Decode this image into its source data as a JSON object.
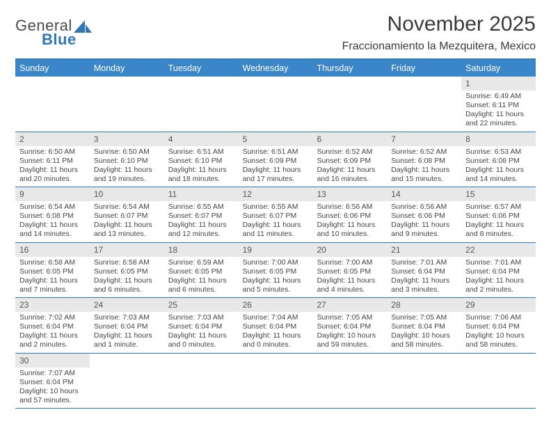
{
  "brand": {
    "part1": "General",
    "part2": "Blue"
  },
  "title": {
    "month": "November 2025",
    "location": "Fraccionamiento la Mezquitera, Mexico"
  },
  "colors": {
    "accent": "#3b86c8",
    "rule": "#2f77b5",
    "daybar": "#e8e8e8",
    "text": "#444444"
  },
  "dayNames": [
    "Sunday",
    "Monday",
    "Tuesday",
    "Wednesday",
    "Thursday",
    "Friday",
    "Saturday"
  ],
  "leadingBlanks": 6,
  "days": [
    {
      "n": "1",
      "sr": "Sunrise: 6:49 AM",
      "ss": "Sunset: 6:11 PM",
      "d1": "Daylight: 11 hours",
      "d2": "and 22 minutes."
    },
    {
      "n": "2",
      "sr": "Sunrise: 6:50 AM",
      "ss": "Sunset: 6:11 PM",
      "d1": "Daylight: 11 hours",
      "d2": "and 20 minutes."
    },
    {
      "n": "3",
      "sr": "Sunrise: 6:50 AM",
      "ss": "Sunset: 6:10 PM",
      "d1": "Daylight: 11 hours",
      "d2": "and 19 minutes."
    },
    {
      "n": "4",
      "sr": "Sunrise: 6:51 AM",
      "ss": "Sunset: 6:10 PM",
      "d1": "Daylight: 11 hours",
      "d2": "and 18 minutes."
    },
    {
      "n": "5",
      "sr": "Sunrise: 6:51 AM",
      "ss": "Sunset: 6:09 PM",
      "d1": "Daylight: 11 hours",
      "d2": "and 17 minutes."
    },
    {
      "n": "6",
      "sr": "Sunrise: 6:52 AM",
      "ss": "Sunset: 6:09 PM",
      "d1": "Daylight: 11 hours",
      "d2": "and 16 minutes."
    },
    {
      "n": "7",
      "sr": "Sunrise: 6:52 AM",
      "ss": "Sunset: 6:08 PM",
      "d1": "Daylight: 11 hours",
      "d2": "and 15 minutes."
    },
    {
      "n": "8",
      "sr": "Sunrise: 6:53 AM",
      "ss": "Sunset: 6:08 PM",
      "d1": "Daylight: 11 hours",
      "d2": "and 14 minutes."
    },
    {
      "n": "9",
      "sr": "Sunrise: 6:54 AM",
      "ss": "Sunset: 6:08 PM",
      "d1": "Daylight: 11 hours",
      "d2": "and 14 minutes."
    },
    {
      "n": "10",
      "sr": "Sunrise: 6:54 AM",
      "ss": "Sunset: 6:07 PM",
      "d1": "Daylight: 11 hours",
      "d2": "and 13 minutes."
    },
    {
      "n": "11",
      "sr": "Sunrise: 6:55 AM",
      "ss": "Sunset: 6:07 PM",
      "d1": "Daylight: 11 hours",
      "d2": "and 12 minutes."
    },
    {
      "n": "12",
      "sr": "Sunrise: 6:55 AM",
      "ss": "Sunset: 6:07 PM",
      "d1": "Daylight: 11 hours",
      "d2": "and 11 minutes."
    },
    {
      "n": "13",
      "sr": "Sunrise: 6:56 AM",
      "ss": "Sunset: 6:06 PM",
      "d1": "Daylight: 11 hours",
      "d2": "and 10 minutes."
    },
    {
      "n": "14",
      "sr": "Sunrise: 6:56 AM",
      "ss": "Sunset: 6:06 PM",
      "d1": "Daylight: 11 hours",
      "d2": "and 9 minutes."
    },
    {
      "n": "15",
      "sr": "Sunrise: 6:57 AM",
      "ss": "Sunset: 6:06 PM",
      "d1": "Daylight: 11 hours",
      "d2": "and 8 minutes."
    },
    {
      "n": "16",
      "sr": "Sunrise: 6:58 AM",
      "ss": "Sunset: 6:05 PM",
      "d1": "Daylight: 11 hours",
      "d2": "and 7 minutes."
    },
    {
      "n": "17",
      "sr": "Sunrise: 6:58 AM",
      "ss": "Sunset: 6:05 PM",
      "d1": "Daylight: 11 hours",
      "d2": "and 6 minutes."
    },
    {
      "n": "18",
      "sr": "Sunrise: 6:59 AM",
      "ss": "Sunset: 6:05 PM",
      "d1": "Daylight: 11 hours",
      "d2": "and 6 minutes."
    },
    {
      "n": "19",
      "sr": "Sunrise: 7:00 AM",
      "ss": "Sunset: 6:05 PM",
      "d1": "Daylight: 11 hours",
      "d2": "and 5 minutes."
    },
    {
      "n": "20",
      "sr": "Sunrise: 7:00 AM",
      "ss": "Sunset: 6:05 PM",
      "d1": "Daylight: 11 hours",
      "d2": "and 4 minutes."
    },
    {
      "n": "21",
      "sr": "Sunrise: 7:01 AM",
      "ss": "Sunset: 6:04 PM",
      "d1": "Daylight: 11 hours",
      "d2": "and 3 minutes."
    },
    {
      "n": "22",
      "sr": "Sunrise: 7:01 AM",
      "ss": "Sunset: 6:04 PM",
      "d1": "Daylight: 11 hours",
      "d2": "and 2 minutes."
    },
    {
      "n": "23",
      "sr": "Sunrise: 7:02 AM",
      "ss": "Sunset: 6:04 PM",
      "d1": "Daylight: 11 hours",
      "d2": "and 2 minutes."
    },
    {
      "n": "24",
      "sr": "Sunrise: 7:03 AM",
      "ss": "Sunset: 6:04 PM",
      "d1": "Daylight: 11 hours",
      "d2": "and 1 minute."
    },
    {
      "n": "25",
      "sr": "Sunrise: 7:03 AM",
      "ss": "Sunset: 6:04 PM",
      "d1": "Daylight: 11 hours",
      "d2": "and 0 minutes."
    },
    {
      "n": "26",
      "sr": "Sunrise: 7:04 AM",
      "ss": "Sunset: 6:04 PM",
      "d1": "Daylight: 11 hours",
      "d2": "and 0 minutes."
    },
    {
      "n": "27",
      "sr": "Sunrise: 7:05 AM",
      "ss": "Sunset: 6:04 PM",
      "d1": "Daylight: 10 hours",
      "d2": "and 59 minutes."
    },
    {
      "n": "28",
      "sr": "Sunrise: 7:05 AM",
      "ss": "Sunset: 6:04 PM",
      "d1": "Daylight: 10 hours",
      "d2": "and 58 minutes."
    },
    {
      "n": "29",
      "sr": "Sunrise: 7:06 AM",
      "ss": "Sunset: 6:04 PM",
      "d1": "Daylight: 10 hours",
      "d2": "and 58 minutes."
    },
    {
      "n": "30",
      "sr": "Sunrise: 7:07 AM",
      "ss": "Sunset: 6:04 PM",
      "d1": "Daylight: 10 hours",
      "d2": "and 57 minutes."
    }
  ]
}
